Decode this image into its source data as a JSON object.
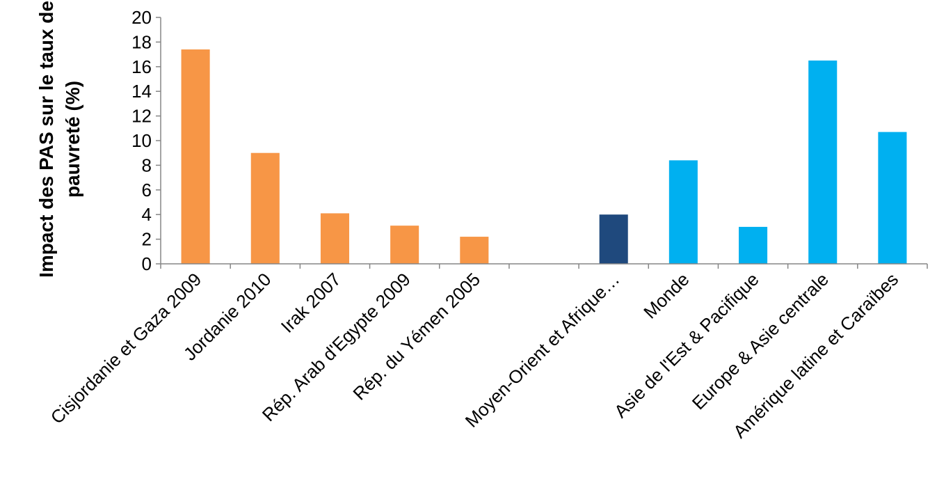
{
  "chart_data": {
    "type": "bar",
    "title": "",
    "xlabel": "",
    "ylabel_lines": [
      "Impact des PAS sur le taux de",
      "pauvreté (%)"
    ],
    "ylim": [
      0,
      20
    ],
    "yticks": [
      0,
      2,
      4,
      6,
      8,
      10,
      12,
      14,
      16,
      18,
      20
    ],
    "categories": [
      "Cisjordanie et Gaza 2009",
      "Jordanie 2010",
      "Irak 2007",
      "Rép. Arab d'Egypte 2009",
      "Rép. du Yémen 2005",
      "",
      "Moyen-Orient et Afrique…",
      "Monde",
      "Asie de l'Est & Pacifique",
      "Europe & Asie centrale",
      "Amérique latine et Caraïbes"
    ],
    "values": [
      17.4,
      9.0,
      4.1,
      3.1,
      2.2,
      null,
      4.0,
      8.4,
      3.0,
      16.5,
      10.7
    ],
    "bar_colors": [
      "#F79646",
      "#F79646",
      "#F79646",
      "#F79646",
      "#F79646",
      "#F79646",
      "#1F497D",
      "#00B0F0",
      "#00B0F0",
      "#00B0F0",
      "#00B0F0"
    ],
    "grid": false,
    "legend": "none"
  }
}
